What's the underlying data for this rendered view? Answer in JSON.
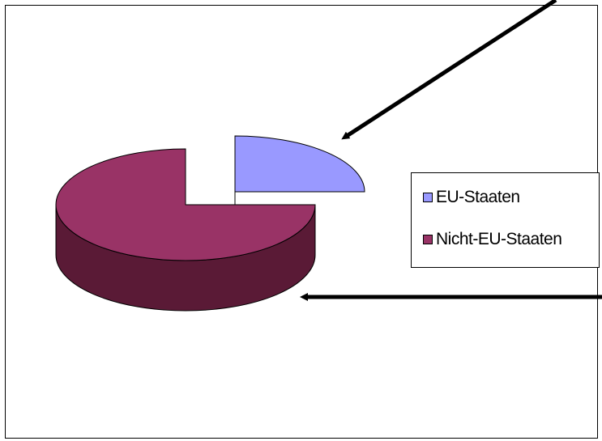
{
  "chart_data": {
    "type": "pie",
    "style": "3d-exploded",
    "title": "",
    "slices": [
      {
        "label": "EU-Staaten",
        "value": 25,
        "color": "#9999ff",
        "side_color": "#555588"
      },
      {
        "label": "Nicht-EU-Staaten",
        "value": 75,
        "color": "#993366",
        "side_color": "#5a1a36"
      }
    ],
    "legend": {
      "position": "right",
      "entries": [
        "EU-Staaten",
        "Nicht-EU-Staaten"
      ]
    },
    "annotations": [
      {
        "type": "arrow",
        "points_to": "EU-Staaten"
      },
      {
        "type": "arrow",
        "points_to": "Nicht-EU-Staaten"
      }
    ]
  }
}
